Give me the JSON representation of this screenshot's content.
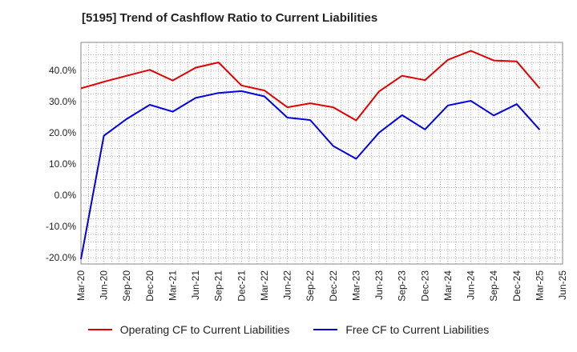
{
  "chart_data": {
    "type": "line",
    "title": "[5195]  Trend of Cashflow Ratio to Current Liabilities",
    "x": [
      "Mar-20",
      "Jun-20",
      "Sep-20",
      "Dec-20",
      "Mar-21",
      "Jun-21",
      "Sep-21",
      "Dec-21",
      "Mar-22",
      "Jun-22",
      "Sep-22",
      "Dec-22",
      "Mar-23",
      "Jun-23",
      "Sep-23",
      "Dec-23",
      "Mar-24",
      "Jun-24",
      "Sep-24",
      "Dec-24",
      "Mar-25",
      "Jun-25"
    ],
    "y_ticks": [
      "40.0%",
      "30.0%",
      "20.0%",
      "10.0%",
      "0.0%",
      "-10.0%",
      "-20.0%"
    ],
    "y_tick_values": [
      40,
      30,
      20,
      10,
      0,
      -10,
      -20
    ],
    "ylim": [
      -22,
      49
    ],
    "grid": true,
    "legend_position": "bottom",
    "series": [
      {
        "name": "Operating CF to Current Liabilities",
        "color": "#e00000",
        "values": [
          34.3,
          36.4,
          38.3,
          40.2,
          36.8,
          40.9,
          42.6,
          35.2,
          33.6,
          28.2,
          29.5,
          28.2,
          24.0,
          33.3,
          38.3,
          36.9,
          43.4,
          46.3,
          43.2,
          42.9,
          34.3,
          null
        ]
      },
      {
        "name": "Free CF to Current Liabilities",
        "color": "#0000e0",
        "values": [
          -20.5,
          19.1,
          24.5,
          29.0,
          26.8,
          31.2,
          32.8,
          33.4,
          31.7,
          24.9,
          24.1,
          15.8,
          11.7,
          20.1,
          25.7,
          21.1,
          28.8,
          30.3,
          25.6,
          29.2,
          21.0,
          null
        ]
      }
    ]
  }
}
